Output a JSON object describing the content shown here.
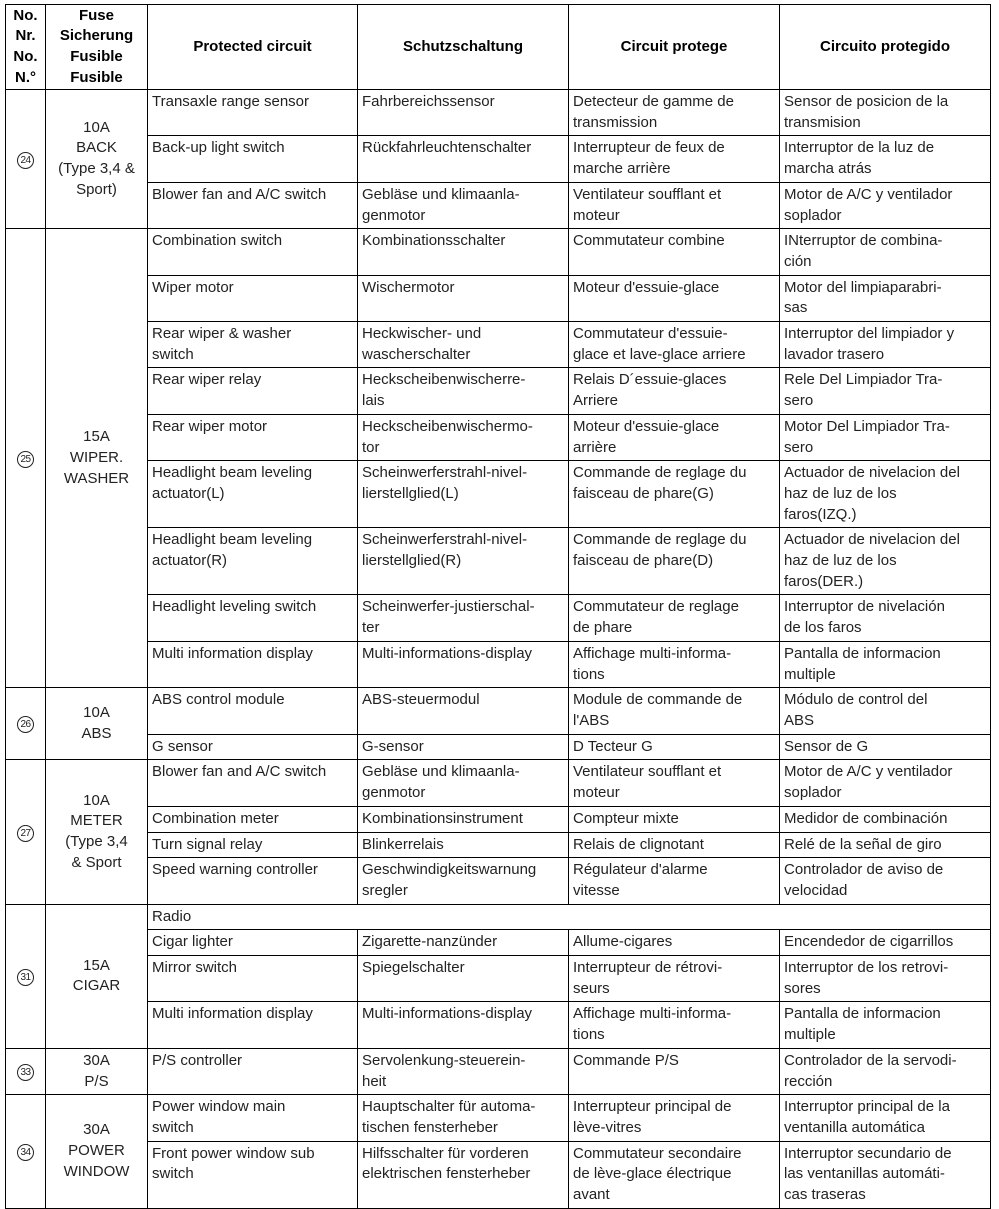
{
  "headers": [
    "No.\nNr.\nNo.\nN.°",
    "Fuse\nSicherung\nFusible\nFusible",
    "Protected circuit",
    "Schutzschaltung",
    "Circuit protege",
    "Circuito protegido"
  ],
  "groups": [
    {
      "no": "24",
      "fuse": "10A\nBACK\n(Type 3,4 &\nSport)",
      "rows": [
        [
          "Transaxle range sensor",
          "Fahrbereichssensor",
          "Detecteur de gamme de\ntransmission",
          "Sensor de posicion de la\ntransmision"
        ],
        [
          "Back-up light switch",
          "Rückfahrleuchtenschalter",
          "Interrupteur de feux de\nmarche arrière",
          "Interruptor de la luz de\nmarcha atrás"
        ],
        [
          "Blower fan and A/C switch",
          "Gebläse und klimaanla-\ngenmotor",
          "Ventilateur soufflant et\nmoteur",
          "Motor de A/C y ventilador\nsoplador"
        ]
      ]
    },
    {
      "no": "25",
      "fuse": "15A\nWIPER.\nWASHER",
      "rows": [
        [
          "Combination switch",
          "Kombinationsschalter",
          "Commutateur combine",
          "INterruptor de combina-\nción"
        ],
        [
          "Wiper motor",
          "Wischermotor",
          "Moteur d'essuie-glace",
          "Motor del limpiaparabri-\nsas"
        ],
        [
          "Rear wiper & washer\nswitch",
          "Heckwischer- und\nwascherschalter",
          "Commutateur d'essuie-\nglace et lave-glace arriere",
          "Interruptor del limpiador y\nlavador trasero"
        ],
        [
          "Rear wiper relay",
          "Heckscheibenwischerre-\nlais",
          "Relais D´essuie-glaces\nArriere",
          "Rele Del Limpiador Tra-\nsero"
        ],
        [
          "Rear wiper motor",
          "Heckscheibenwischermo-\ntor",
          "Moteur d'essuie-glace\narrière",
          "Motor Del Limpiador Tra-\nsero"
        ],
        [
          "Headlight beam leveling\nactuator(L)",
          "Scheinwerferstrahl-nivel-\nlierstellglied(L)",
          "Commande de reglage du\nfaisceau de phare(G)",
          "Actuador de nivelacion del\nhaz de luz de los\nfaros(IZQ.)"
        ],
        [
          "Headlight beam leveling\nactuator(R)",
          "Scheinwerferstrahl-nivel-\nlierstellglied(R)",
          "Commande de reglage du\nfaisceau de phare(D)",
          "Actuador de nivelacion del\nhaz de luz de los\nfaros(DER.)"
        ],
        [
          "Headlight leveling switch",
          "Scheinwerfer-justierschal-\nter",
          "Commutateur de reglage\nde phare",
          "Interruptor de nivelación\nde los faros"
        ],
        [
          "Multi information display",
          "Multi-informations-display",
          "Affichage multi-informa-\ntions",
          "Pantalla de informacion\nmultiple"
        ]
      ]
    },
    {
      "no": "26",
      "fuse": "10A\nABS",
      "rows": [
        [
          "ABS control module",
          "ABS-steuermodul",
          "Module de commande de\nl'ABS",
          "Módulo de control del\nABS"
        ],
        [
          "G sensor",
          "G-sensor",
          "D Tecteur G",
          "Sensor de G"
        ]
      ]
    },
    {
      "no": "27",
      "fuse": "10A\nMETER\n(Type 3,4\n& Sport",
      "rows": [
        [
          "Blower fan and A/C switch",
          "Gebläse und klimaanla-\ngenmotor",
          "Ventilateur soufflant et\nmoteur",
          "Motor de A/C y ventilador\nsoplador"
        ],
        [
          "Combination meter",
          "Kombinationsinstrument",
          "Compteur mixte",
          "Medidor de combinación"
        ],
        [
          "Turn signal relay",
          "Blinkerrelais",
          "Relais de clignotant",
          "Relé de la señal de giro"
        ],
        [
          "Speed warning controller",
          "Geschwindigkeitswarnung\nsregler",
          "Régulateur d'alarme\nvitesse",
          "Controlador de aviso de\nvelocidad"
        ]
      ]
    },
    {
      "no": "31",
      "fuse": "15A\nCIGAR",
      "rows": [
        [
          "Radio"
        ],
        [
          "Cigar lighter",
          "Zigarette-nanzünder",
          "Allume-cigares",
          "Encendedor de cigarrillos"
        ],
        [
          "Mirror switch",
          "Spiegelschalter",
          "Interrupteur de rétrovi-\nseurs",
          "Interruptor de los retrovi-\nsores"
        ],
        [
          "Multi information display",
          "Multi-informations-display",
          "Affichage multi-informa-\ntions",
          "Pantalla de informacion\nmultiple"
        ]
      ]
    },
    {
      "no": "33",
      "fuse": "30A\nP/S",
      "rows": [
        [
          "P/S controller",
          "Servolenkung-steuerein-\nheit",
          "Commande P/S",
          "Controlador de la servodi-\nrección"
        ]
      ]
    },
    {
      "no": "34",
      "fuse": "30A\nPOWER\nWINDOW",
      "rows": [
        [
          "Power window main\nswitch",
          "Hauptschalter für automa-\ntischen fensterheber",
          "Interrupteur principal de\nlève-vitres",
          "Interruptor principal de la\nventanilla automática"
        ],
        [
          "Front power window sub\nswitch",
          "Hilfsschalter für vorderen\nelektrischen fensterheber",
          "Commutateur secondaire\nde lève-glace électrique\navant",
          "Interruptor secundario de\nlas ventanillas automáti-\ncas traseras"
        ]
      ]
    }
  ]
}
